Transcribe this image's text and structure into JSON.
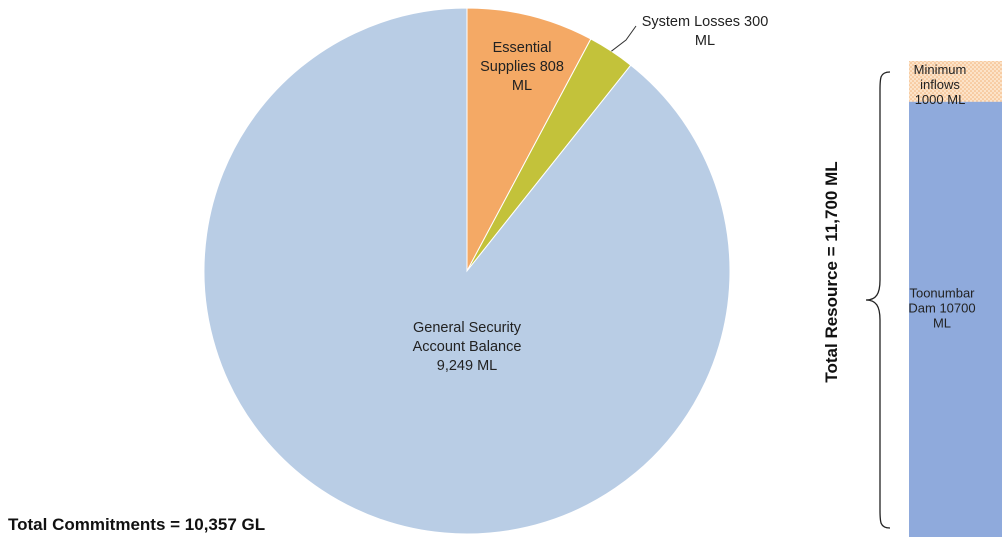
{
  "chart_data": [
    {
      "type": "pie",
      "slices": [
        {
          "label_lines": [
            "Essential",
            "Supplies 808",
            "ML"
          ],
          "value": 808,
          "color": "#F4A965"
        },
        {
          "label_lines": [
            "System Losses 300",
            "ML"
          ],
          "value": 300,
          "color": "#C3C23A"
        },
        {
          "label_lines": [
            "General Security",
            "Account Balance",
            "9,249 ML"
          ],
          "value": 9249,
          "color": "#B9CDE5"
        }
      ],
      "footer": "Total Commitments =  10,357 GL"
    },
    {
      "type": "bar",
      "stacked": true,
      "segments": [
        {
          "label_lines": [
            "Toonumbar",
            "Dam 10700",
            "ML"
          ],
          "value": 10700,
          "color": "#8FAADC"
        },
        {
          "label_lines": [
            "Minimum",
            "inflows",
            "1000 ML"
          ],
          "value": 1000,
          "color": "#FAD7B5",
          "pattern": "dotted"
        }
      ],
      "side_label": "Total Resource =  11,700 ML"
    }
  ]
}
